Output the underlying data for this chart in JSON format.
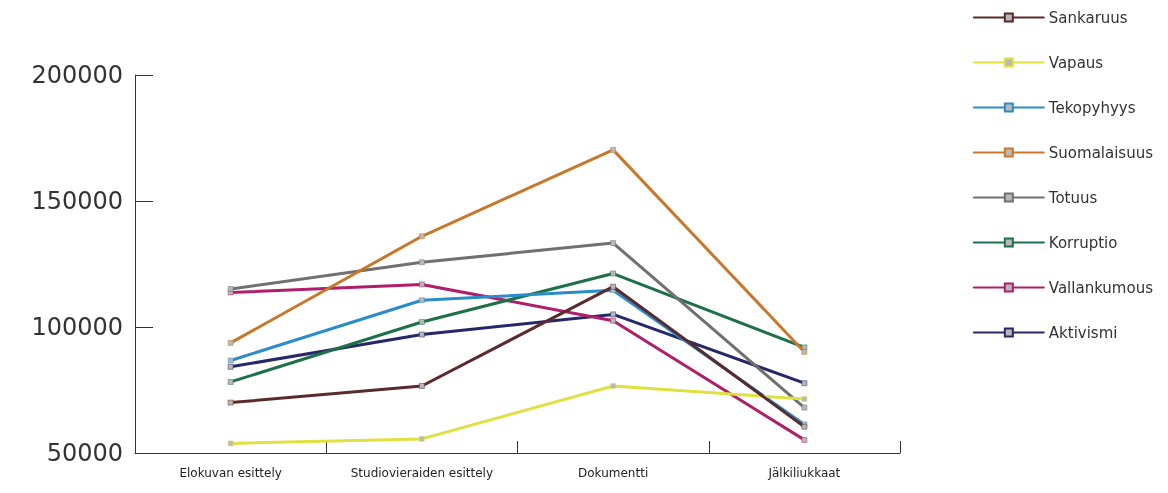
{
  "chart_data": {
    "type": "line",
    "categories": [
      "Elokuvan esittely",
      "Studiovieraiden esittely",
      "Dokumentti",
      "Jälkiliukkaat"
    ],
    "series": [
      {
        "name": "Sankaruus",
        "color": "#5a2a2e",
        "values": [
          70000,
          76600,
          116000,
          60400
        ]
      },
      {
        "name": "Vapaus",
        "color": "#e0e040",
        "values": [
          53800,
          55600,
          76600,
          71400
        ]
      },
      {
        "name": "Tekopyhyys",
        "color": "#2a8cc8",
        "values": [
          86700,
          110600,
          114600,
          61300
        ]
      },
      {
        "name": "Suomalaisuus",
        "color": "#c8782a",
        "values": [
          93700,
          136000,
          170300,
          90100
        ]
      },
      {
        "name": "Totuus",
        "color": "#707070",
        "values": [
          115100,
          125700,
          133300,
          68000
        ]
      },
      {
        "name": "Korruptio",
        "color": "#1e7048",
        "values": [
          78200,
          102000,
          121200,
          91900
        ]
      },
      {
        "name": "Vallankumous",
        "color": "#b01e6a",
        "values": [
          113700,
          116900,
          102500,
          55200
        ]
      },
      {
        "name": "Aktivismi",
        "color": "#26286a",
        "values": [
          84200,
          97000,
          105000,
          77700
        ]
      }
    ],
    "ylim": [
      50000,
      200000
    ],
    "yticks": [
      50000,
      100000,
      150000,
      200000
    ],
    "grid": false,
    "legend": "right",
    "marker": "square",
    "line_style": "solid"
  }
}
